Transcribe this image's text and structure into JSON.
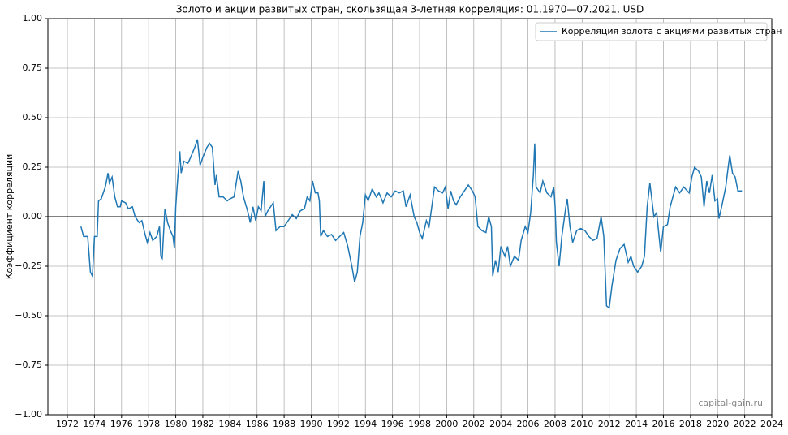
{
  "chart_data": {
    "type": "line",
    "title": "Золото и акции развитых стран, скользящая 3-летняя корреляция: 01.1970—07.2021, USD",
    "ylabel": "Коэффициент корреляции",
    "watermark": "capital-gain.ru",
    "legend": "upper right",
    "grid": true,
    "xlim": [
      1970.56,
      2024
    ],
    "xticks": [
      1972,
      1974,
      1976,
      1978,
      1980,
      1982,
      1984,
      1986,
      1988,
      1990,
      1992,
      1994,
      1996,
      1998,
      2000,
      2002,
      2004,
      2006,
      2008,
      2010,
      2012,
      2014,
      2016,
      2018,
      2020,
      2022,
      2024
    ],
    "ylim": [
      -1,
      1
    ],
    "yticks": [
      {
        "value": -1,
        "label": "−1.00"
      },
      {
        "value": -0.75,
        "label": "−0.75"
      },
      {
        "value": -0.5,
        "label": "−0.50"
      },
      {
        "value": -0.25,
        "label": "−0.25"
      },
      {
        "value": 0,
        "label": "0.00"
      },
      {
        "value": 0.25,
        "label": "0.25"
      },
      {
        "value": 0.5,
        "label": "0.50"
      },
      {
        "value": 0.75,
        "label": "0.75"
      },
      {
        "value": 1,
        "label": "1.00"
      }
    ],
    "x": [
      1973.0,
      1973.2,
      1973.5,
      1973.7,
      1973.85,
      1974.0,
      1974.2,
      1974.3,
      1974.5,
      1974.8,
      1975.0,
      1975.1,
      1975.3,
      1975.5,
      1975.7,
      1975.9,
      1976.0,
      1976.3,
      1976.5,
      1976.8,
      1977.0,
      1977.3,
      1977.5,
      1977.7,
      1977.9,
      1978.1,
      1978.3,
      1978.6,
      1978.8,
      1978.9,
      1979.0,
      1979.2,
      1979.4,
      1979.6,
      1979.8,
      1979.9,
      1980.0,
      1980.1,
      1980.3,
      1980.4,
      1980.6,
      1980.9,
      1981.1,
      1981.4,
      1981.6,
      1981.8,
      1982.0,
      1982.3,
      1982.5,
      1982.7,
      1982.9,
      1983.0,
      1983.2,
      1983.5,
      1983.8,
      1984.0,
      1984.3,
      1984.6,
      1984.8,
      1985.0,
      1985.3,
      1985.5,
      1985.7,
      1985.9,
      1986.1,
      1986.3,
      1986.5,
      1986.6,
      1986.8,
      1987.0,
      1987.2,
      1987.4,
      1987.7,
      1988.0,
      1988.3,
      1988.6,
      1988.9,
      1989.2,
      1989.5,
      1989.7,
      1989.9,
      1990.1,
      1990.3,
      1990.5,
      1990.6,
      1990.7,
      1990.9,
      1991.2,
      1991.5,
      1991.8,
      1992.1,
      1992.4,
      1992.7,
      1993.0,
      1993.2,
      1993.4,
      1993.6,
      1993.8,
      1994.0,
      1994.2,
      1994.5,
      1994.8,
      1995.0,
      1995.3,
      1995.6,
      1995.9,
      1996.2,
      1996.5,
      1996.8,
      1997.0,
      1997.3,
      1997.6,
      1997.8,
      1998.0,
      1998.2,
      1998.5,
      1998.7,
      1998.9,
      1999.1,
      1999.4,
      1999.7,
      1999.9,
      2000.1,
      2000.3,
      2000.5,
      2000.7,
      2001.0,
      2001.3,
      2001.6,
      2001.9,
      2002.1,
      2002.3,
      2002.6,
      2002.9,
      2003.1,
      2003.3,
      2003.4,
      2003.6,
      2003.8,
      2004.0,
      2004.3,
      2004.5,
      2004.7,
      2005.0,
      2005.3,
      2005.5,
      2005.8,
      2006.0,
      2006.2,
      2006.4,
      2006.5,
      2006.6,
      2006.9,
      2007.1,
      2007.4,
      2007.7,
      2007.9,
      2008.0,
      2008.1,
      2008.3,
      2008.5,
      2008.8,
      2008.9,
      2009.1,
      2009.3,
      2009.6,
      2009.9,
      2010.2,
      2010.5,
      2010.8,
      2011.1,
      2011.4,
      2011.6,
      2011.8,
      2012.0,
      2012.2,
      2012.5,
      2012.8,
      2013.1,
      2013.4,
      2013.6,
      2013.8,
      2014.1,
      2014.4,
      2014.6,
      2014.8,
      2015.0,
      2015.3,
      2015.5,
      2015.8,
      2016.0,
      2016.3,
      2016.5,
      2016.7,
      2016.9,
      2017.2,
      2017.5,
      2017.9,
      2018.1,
      2018.3,
      2018.6,
      2018.8,
      2019.0,
      2019.2,
      2019.4,
      2019.6,
      2019.8,
      2020.0,
      2020.1,
      2020.3,
      2020.6,
      2020.8,
      2020.9,
      2021.1,
      2021.3,
      2021.5,
      2021.8
    ],
    "series": [
      {
        "name": "Корреляция золота с акциями развитых стран",
        "color": "#1f77b4",
        "values": [
          -0.05,
          -0.1,
          -0.1,
          -0.28,
          -0.3,
          -0.1,
          -0.1,
          0.08,
          0.09,
          0.15,
          0.22,
          0.17,
          0.2,
          0.1,
          0.05,
          0.05,
          0.08,
          0.07,
          0.04,
          0.05,
          0.0,
          -0.03,
          -0.02,
          -0.08,
          -0.13,
          -0.08,
          -0.12,
          -0.1,
          -0.05,
          -0.2,
          -0.21,
          0.04,
          -0.03,
          -0.07,
          -0.1,
          -0.16,
          0.05,
          0.15,
          0.33,
          0.22,
          0.28,
          0.27,
          0.3,
          0.35,
          0.39,
          0.26,
          0.3,
          0.35,
          0.37,
          0.35,
          0.16,
          0.21,
          0.1,
          0.1,
          0.08,
          0.09,
          0.1,
          0.23,
          0.18,
          0.1,
          0.03,
          -0.03,
          0.05,
          -0.02,
          0.05,
          0.03,
          0.18,
          0.0,
          0.03,
          0.05,
          0.07,
          -0.07,
          -0.05,
          -0.05,
          -0.02,
          0.01,
          -0.01,
          0.03,
          0.04,
          0.1,
          0.08,
          0.18,
          0.12,
          0.12,
          0.08,
          -0.1,
          -0.07,
          -0.1,
          -0.09,
          -0.12,
          -0.1,
          -0.08,
          -0.15,
          -0.25,
          -0.33,
          -0.28,
          -0.1,
          -0.03,
          0.11,
          0.08,
          0.14,
          0.1,
          0.12,
          0.07,
          0.12,
          0.1,
          0.13,
          0.12,
          0.13,
          0.05,
          0.11,
          0.0,
          -0.03,
          -0.08,
          -0.11,
          -0.02,
          -0.05,
          0.05,
          0.15,
          0.13,
          0.12,
          0.15,
          0.04,
          0.13,
          0.08,
          0.06,
          0.1,
          0.13,
          0.16,
          0.13,
          0.1,
          -0.05,
          -0.07,
          -0.08,
          0.0,
          -0.05,
          -0.3,
          -0.22,
          -0.28,
          -0.15,
          -0.2,
          -0.15,
          -0.25,
          -0.2,
          -0.22,
          -0.12,
          -0.05,
          -0.08,
          0.02,
          0.21,
          0.37,
          0.15,
          0.12,
          0.18,
          0.12,
          0.1,
          0.15,
          0.06,
          -0.13,
          -0.25,
          -0.1,
          0.05,
          0.09,
          -0.05,
          -0.13,
          -0.07,
          -0.06,
          -0.07,
          -0.1,
          -0.12,
          -0.11,
          0.0,
          -0.1,
          -0.45,
          -0.46,
          -0.35,
          -0.22,
          -0.16,
          -0.14,
          -0.23,
          -0.2,
          -0.25,
          -0.28,
          -0.25,
          -0.2,
          0.05,
          0.17,
          0.0,
          0.02,
          -0.18,
          -0.05,
          -0.04,
          0.05,
          0.1,
          0.15,
          0.12,
          0.15,
          0.12,
          0.2,
          0.25,
          0.23,
          0.2,
          0.05,
          0.18,
          0.12,
          0.21,
          0.08,
          0.09,
          -0.01,
          0.05,
          0.15,
          0.26,
          0.31,
          0.22,
          0.2,
          0.13,
          0.13
        ]
      }
    ]
  }
}
